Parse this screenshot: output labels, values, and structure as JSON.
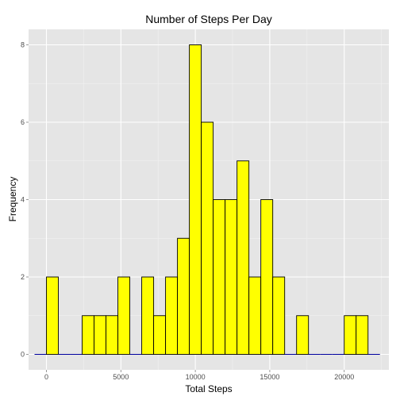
{
  "chart_data": {
    "type": "bar",
    "title": "Number of Steps Per Day",
    "xlabel": "Total Steps",
    "ylabel": "Frequency",
    "xlim": [
      -1200,
      23000
    ],
    "ylim": [
      -0.4,
      8.4
    ],
    "x_ticks": [
      0,
      5000,
      10000,
      15000,
      20000
    ],
    "x_tick_labels": [
      "0",
      "5000",
      "10000",
      "15000",
      "20000"
    ],
    "y_ticks": [
      0,
      2,
      4,
      6,
      8
    ],
    "y_tick_labels": [
      "0",
      "2",
      "4",
      "6",
      "8"
    ],
    "grid": true,
    "bin_width": 800,
    "bins": [
      {
        "x0": -800,
        "x1": 0,
        "count": 0
      },
      {
        "x0": 0,
        "x1": 800,
        "count": 2
      },
      {
        "x0": 800,
        "x1": 1600,
        "count": 0
      },
      {
        "x0": 1600,
        "x1": 2400,
        "count": 0
      },
      {
        "x0": 2400,
        "x1": 3200,
        "count": 1
      },
      {
        "x0": 3200,
        "x1": 4000,
        "count": 1
      },
      {
        "x0": 4000,
        "x1": 4800,
        "count": 1
      },
      {
        "x0": 4800,
        "x1": 5600,
        "count": 2
      },
      {
        "x0": 5600,
        "x1": 6400,
        "count": 0
      },
      {
        "x0": 6400,
        "x1": 7200,
        "count": 2
      },
      {
        "x0": 7200,
        "x1": 8000,
        "count": 1
      },
      {
        "x0": 8000,
        "x1": 8800,
        "count": 2
      },
      {
        "x0": 8800,
        "x1": 9600,
        "count": 3
      },
      {
        "x0": 9600,
        "x1": 10400,
        "count": 8
      },
      {
        "x0": 10400,
        "x1": 11200,
        "count": 6
      },
      {
        "x0": 11200,
        "x1": 12000,
        "count": 4
      },
      {
        "x0": 12000,
        "x1": 12800,
        "count": 4
      },
      {
        "x0": 12800,
        "x1": 13600,
        "count": 5
      },
      {
        "x0": 13600,
        "x1": 14400,
        "count": 2
      },
      {
        "x0": 14400,
        "x1": 15200,
        "count": 4
      },
      {
        "x0": 15200,
        "x1": 16000,
        "count": 2
      },
      {
        "x0": 16000,
        "x1": 16800,
        "count": 0
      },
      {
        "x0": 16800,
        "x1": 17600,
        "count": 1
      },
      {
        "x0": 17600,
        "x1": 18400,
        "count": 0
      },
      {
        "x0": 18400,
        "x1": 19200,
        "count": 0
      },
      {
        "x0": 19200,
        "x1": 20000,
        "count": 0
      },
      {
        "x0": 20000,
        "x1": 20800,
        "count": 1
      },
      {
        "x0": 20800,
        "x1": 21600,
        "count": 1
      },
      {
        "x0": 21600,
        "x1": 22400,
        "count": 0
      }
    ],
    "colors": {
      "bar_fill": "#ffff00",
      "bar_outline": "#000000",
      "zero_bin_line": "#0000a0",
      "panel_background": "#e5e5e5",
      "grid_major": "#ffffff",
      "grid_minor": "#f2f2f2",
      "tick_label": "#4d4d4d"
    }
  }
}
